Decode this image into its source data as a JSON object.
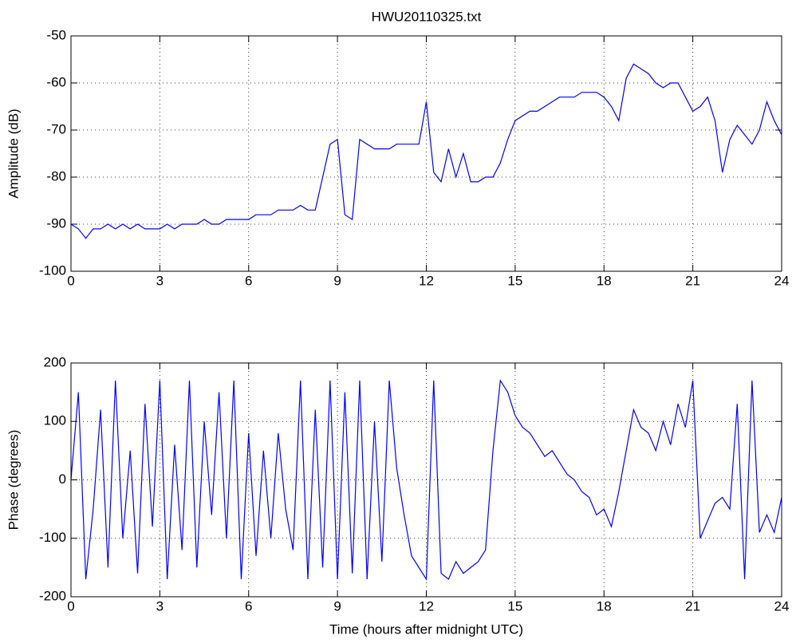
{
  "chart_data": [
    {
      "type": "line",
      "title": "HWU20110325.txt",
      "ylabel": "Amplitude (dB)",
      "color": "#0000ff",
      "grid": true,
      "xlim": [
        0,
        24
      ],
      "ylim": [
        -100,
        -50
      ],
      "xticks": [
        0,
        3,
        6,
        9,
        12,
        15,
        18,
        21,
        24
      ],
      "yticks": [
        -100,
        -90,
        -80,
        -70,
        -60,
        -50
      ],
      "x": [
        0,
        0.25,
        0.5,
        0.75,
        1,
        1.25,
        1.5,
        1.75,
        2,
        2.25,
        2.5,
        2.75,
        3,
        3.25,
        3.5,
        3.75,
        4,
        4.25,
        4.5,
        4.75,
        5,
        5.25,
        5.5,
        5.75,
        6,
        6.25,
        6.5,
        6.75,
        7,
        7.25,
        7.5,
        7.75,
        8,
        8.25,
        8.5,
        8.75,
        9,
        9.25,
        9.5,
        9.75,
        10,
        10.25,
        10.5,
        10.75,
        11,
        11.25,
        11.5,
        11.75,
        12,
        12.25,
        12.5,
        12.75,
        13,
        13.25,
        13.5,
        13.75,
        14,
        14.25,
        14.5,
        14.75,
        15,
        15.25,
        15.5,
        15.75,
        16,
        16.25,
        16.5,
        16.75,
        17,
        17.25,
        17.5,
        17.75,
        18,
        18.25,
        18.5,
        18.75,
        19,
        19.25,
        19.5,
        19.75,
        20,
        20.25,
        20.5,
        20.75,
        21,
        21.25,
        21.5,
        21.75,
        22,
        22.25,
        22.5,
        22.75,
        23,
        23.25,
        23.5,
        23.75,
        24
      ],
      "values": [
        -90,
        -91,
        -93,
        -91,
        -91,
        -90,
        -91,
        -90,
        -91,
        -90,
        -91,
        -91,
        -91,
        -90,
        -91,
        -90,
        -90,
        -90,
        -89,
        -90,
        -90,
        -89,
        -89,
        -89,
        -89,
        -88,
        -88,
        -88,
        -87,
        -87,
        -87,
        -86,
        -87,
        -87,
        -80,
        -73,
        -72,
        -88,
        -89,
        -72,
        -73,
        -74,
        -74,
        -74,
        -73,
        -73,
        -73,
        -73,
        -64,
        -79,
        -81,
        -74,
        -80,
        -75,
        -81,
        -81,
        -80,
        -80,
        -77,
        -72,
        -68,
        -67,
        -66,
        -66,
        -65,
        -64,
        -63,
        -63,
        -63,
        -62,
        -62,
        -62,
        -63,
        -65,
        -68,
        -59,
        -56,
        -57,
        -58,
        -60,
        -61,
        -60,
        -60,
        -63,
        -66,
        -65,
        -63,
        -68,
        -79,
        -72,
        -69,
        -71,
        -73,
        -70,
        -64,
        -68,
        -71
      ]
    },
    {
      "type": "line",
      "ylabel": "Phase (degrees)",
      "xlabel": "Time (hours after midnight UTC)",
      "color": "#0000ff",
      "grid": true,
      "xlim": [
        0,
        24
      ],
      "ylim": [
        -200,
        200
      ],
      "xticks": [
        0,
        3,
        6,
        9,
        12,
        15,
        18,
        21,
        24
      ],
      "yticks": [
        -200,
        -100,
        0,
        100,
        200
      ],
      "x": [
        0,
        0.25,
        0.5,
        0.75,
        1,
        1.25,
        1.5,
        1.75,
        2,
        2.25,
        2.5,
        2.75,
        3,
        3.25,
        3.5,
        3.75,
        4,
        4.25,
        4.5,
        4.75,
        5,
        5.25,
        5.5,
        5.75,
        6,
        6.25,
        6.5,
        6.75,
        7,
        7.25,
        7.5,
        7.75,
        8,
        8.25,
        8.5,
        8.75,
        9,
        9.25,
        9.5,
        9.75,
        10,
        10.25,
        10.5,
        10.75,
        11,
        11.25,
        11.5,
        11.75,
        12,
        12.25,
        12.5,
        12.75,
        13,
        13.25,
        13.5,
        13.75,
        14,
        14.25,
        14.5,
        14.75,
        15,
        15.25,
        15.5,
        15.75,
        16,
        16.25,
        16.5,
        16.75,
        17,
        17.25,
        17.5,
        17.75,
        18,
        18.25,
        18.5,
        18.75,
        19,
        19.25,
        19.5,
        19.75,
        20,
        20.25,
        20.5,
        20.75,
        21,
        21.25,
        21.5,
        21.75,
        22,
        22.25,
        22.5,
        22.75,
        23,
        23.25,
        23.5,
        23.75,
        24
      ],
      "values": [
        0,
        150,
        -170,
        -50,
        120,
        -150,
        170,
        -100,
        50,
        -160,
        130,
        -80,
        170,
        -170,
        60,
        -120,
        170,
        -150,
        100,
        -60,
        150,
        -100,
        170,
        -170,
        80,
        -130,
        50,
        -100,
        80,
        -50,
        -120,
        170,
        -170,
        120,
        -150,
        170,
        -170,
        150,
        -160,
        170,
        -170,
        100,
        -140,
        170,
        20,
        -60,
        -130,
        -150,
        -170,
        170,
        -160,
        -170,
        -140,
        -160,
        -150,
        -140,
        -120,
        50,
        170,
        150,
        110,
        90,
        80,
        60,
        40,
        50,
        30,
        10,
        0,
        -20,
        -30,
        -60,
        -50,
        -80,
        -20,
        50,
        120,
        90,
        80,
        50,
        100,
        60,
        130,
        90,
        170,
        -100,
        -70,
        -40,
        -30,
        -50,
        130,
        -170,
        170,
        -90,
        -60,
        -90,
        -30
      ]
    }
  ]
}
